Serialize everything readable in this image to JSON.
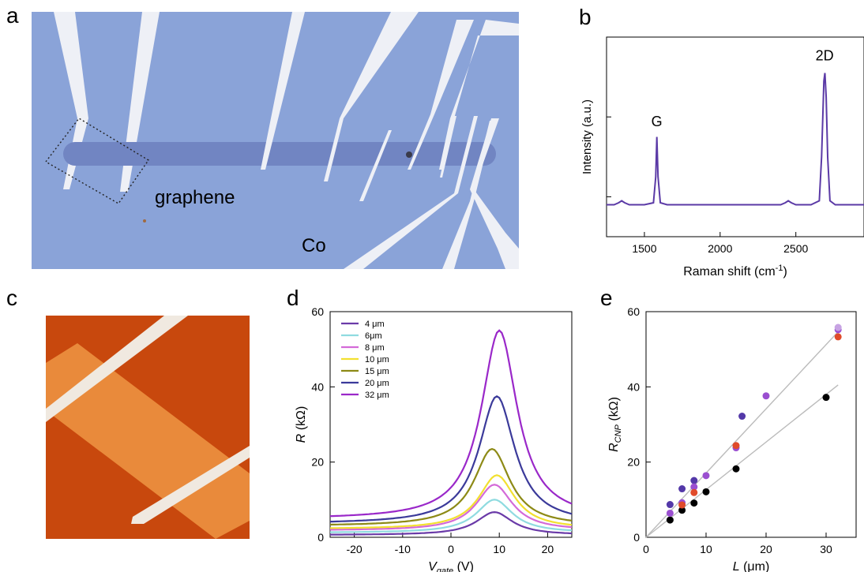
{
  "panels": {
    "a": {
      "letter": "a",
      "label_graphene": "graphene",
      "label_co": "Co",
      "colors": {
        "substrate": "#8aa3d8",
        "electrode": "#eef0f6",
        "graphene": "#7185c2"
      }
    },
    "b": {
      "letter": "b"
    },
    "c": {
      "letter": "c",
      "colors": {
        "background": "#c8480d",
        "stripe": "#e98a3b",
        "electrode": "#f0e9e0"
      }
    },
    "d": {
      "letter": "d"
    },
    "e": {
      "letter": "e"
    }
  },
  "chart_data": [
    {
      "id": "b",
      "type": "line",
      "xlabel": "Raman shift (cm",
      "xlabel_sup": "-1",
      "xlabel_end": ")",
      "ylabel": "Intensity (a.u.)",
      "xlim": [
        1250,
        2950
      ],
      "ylim": [
        0,
        1.0
      ],
      "xticks": [
        1500,
        2000,
        2500
      ],
      "xtick_labels": [
        "1500",
        "2000",
        "2500"
      ],
      "peaks_annotations": [
        {
          "label": "G",
          "x": 1582,
          "y": 0.53
        },
        {
          "label": "2D",
          "x": 2690,
          "y": 0.86
        }
      ],
      "series": [
        {
          "color": "#5b3aa6",
          "points": [
            [
              1250,
              0.16
            ],
            [
              1300,
              0.16
            ],
            [
              1330,
              0.17
            ],
            [
              1350,
              0.18
            ],
            [
              1370,
              0.17
            ],
            [
              1400,
              0.16
            ],
            [
              1500,
              0.16
            ],
            [
              1560,
              0.17
            ],
            [
              1575,
              0.3
            ],
            [
              1582,
              0.5
            ],
            [
              1590,
              0.3
            ],
            [
              1605,
              0.17
            ],
            [
              1650,
              0.16
            ],
            [
              1800,
              0.16
            ],
            [
              2000,
              0.16
            ],
            [
              2200,
              0.16
            ],
            [
              2400,
              0.16
            ],
            [
              2430,
              0.17
            ],
            [
              2450,
              0.18
            ],
            [
              2470,
              0.17
            ],
            [
              2500,
              0.16
            ],
            [
              2600,
              0.16
            ],
            [
              2655,
              0.18
            ],
            [
              2670,
              0.4
            ],
            [
              2685,
              0.78
            ],
            [
              2692,
              0.82
            ],
            [
              2700,
              0.7
            ],
            [
              2710,
              0.4
            ],
            [
              2725,
              0.18
            ],
            [
              2760,
              0.16
            ],
            [
              2950,
              0.16
            ]
          ]
        }
      ]
    },
    {
      "id": "d",
      "type": "line",
      "xlabel": "V",
      "xlabel_sub": "gate",
      "xlabel_unit": " (V)",
      "ylabel": "R",
      "ylabel_unit": " (kΩ)",
      "xlim": [
        -25,
        25
      ],
      "ylim": [
        0,
        60
      ],
      "xticks": [
        -20,
        -10,
        0,
        10,
        20
      ],
      "yticks": [
        0,
        20,
        40,
        60
      ],
      "series": [
        {
          "name": "4 μm",
          "color": "#6a3aa8",
          "peak": 6.7,
          "base": 0.6,
          "center": 9,
          "width": 4.5
        },
        {
          "name": "6μm",
          "color": "#8fdbe0",
          "peak": 10,
          "base": 1.2,
          "center": 9,
          "width": 4.5
        },
        {
          "name": "8 μm",
          "color": "#d46ad8",
          "peak": 14,
          "base": 1.8,
          "center": 9,
          "width": 4.5
        },
        {
          "name": "10 μm",
          "color": "#f2e030",
          "peak": 16.5,
          "base": 2.2,
          "center": 9.5,
          "width": 4.5
        },
        {
          "name": "15 μm",
          "color": "#8d8a16",
          "peak": 23.5,
          "base": 3.0,
          "center": 8.5,
          "width": 4.5
        },
        {
          "name": "20 μm",
          "color": "#3b3a9a",
          "peak": 37.5,
          "base": 3.6,
          "center": 9.5,
          "width": 4.5
        },
        {
          "name": "32 μm",
          "color": "#9a28c9",
          "peak": 55,
          "base": 4.8,
          "center": 10,
          "width": 4.5
        }
      ]
    },
    {
      "id": "e",
      "type": "scatter",
      "xlabel": "L",
      "xlabel_unit": " (μm)",
      "ylabel": "R",
      "ylabel_sub": "CNP",
      "ylabel_unit": " (kΩ)",
      "xlim": [
        0,
        35
      ],
      "ylim": [
        0,
        60
      ],
      "xticks": [
        0,
        10,
        20,
        30
      ],
      "yticks": [
        0,
        20,
        40,
        60
      ],
      "fit_lines": [
        {
          "x": [
            0,
            32.5
          ],
          "y": [
            0,
            55.5
          ]
        },
        {
          "x": [
            0,
            32
          ],
          "y": [
            0,
            40.5
          ]
        }
      ],
      "series": [
        {
          "color": "#000000",
          "points": [
            [
              4,
              4.6
            ],
            [
              6,
              7.2
            ],
            [
              8,
              9.1
            ],
            [
              10,
              12.1
            ],
            [
              15,
              18.2
            ],
            [
              30,
              37.2
            ]
          ]
        },
        {
          "color": "#5338a8",
          "points": [
            [
              4,
              8.7
            ],
            [
              6,
              12.9
            ],
            [
              8,
              15.1
            ],
            [
              16,
              32.2
            ]
          ]
        },
        {
          "color": "#9a4fd0",
          "points": [
            [
              4,
              6.4
            ],
            [
              6,
              9.2
            ],
            [
              8,
              13.4
            ],
            [
              10,
              16.4
            ],
            [
              15,
              23.8
            ],
            [
              20,
              37.6
            ],
            [
              32,
              55.2
            ]
          ]
        },
        {
          "color": "#e04a2a",
          "points": [
            [
              6,
              8.6
            ],
            [
              8,
              11.9
            ],
            [
              15,
              24.4
            ],
            [
              32,
              53.3
            ]
          ]
        },
        {
          "color": "#c7a3e3",
          "points": [
            [
              32,
              55.8
            ]
          ]
        }
      ]
    }
  ]
}
